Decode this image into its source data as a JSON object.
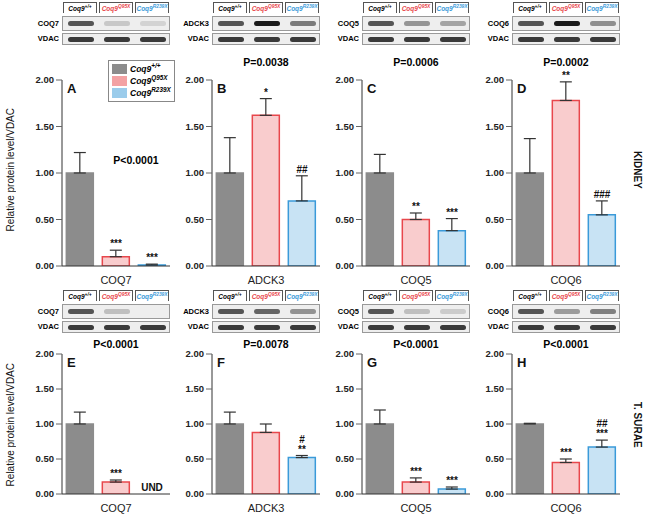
{
  "chart_data": [
    {
      "type": "bar",
      "title": "A",
      "subtitle": "P<0.0001",
      "ylabel": "Relative protein level/VDAC",
      "categories": [
        "COQ7"
      ],
      "blot_labels": [
        "COQ7",
        "VDAC"
      ],
      "legend": "upper right",
      "ylim": [
        0,
        2
      ],
      "yticks": [
        {
          "value": 0,
          "label": "0.00"
        },
        {
          "value": 0.5,
          "label": "0.50"
        },
        {
          "value": 1,
          "label": "1.00"
        },
        {
          "value": 1.5,
          "label": "1.50"
        },
        {
          "value": 2,
          "label": "2.00"
        }
      ],
      "series": [
        {
          "name": "Coq9+/+",
          "color": "#8c8c8c",
          "values": [
            1.0
          ],
          "errors": [
            0.22
          ],
          "annotations": [
            []
          ]
        },
        {
          "name": "Coq9Q95X",
          "color": "#e8474c",
          "values": [
            0.1
          ],
          "errors": [
            0.07
          ],
          "annotations": [
            [
              "***"
            ]
          ]
        },
        {
          "name": "Coq9R239X",
          "color": "#3a9ad9",
          "values": [
            0.01
          ],
          "errors": [
            0.01
          ],
          "annotations": [
            [
              "***"
            ]
          ]
        }
      ]
    },
    {
      "type": "bar",
      "title": "B",
      "subtitle": "P=0.0038",
      "categories": [
        "ADCK3"
      ],
      "blot_labels": [
        "ADCK3",
        "VDAC"
      ],
      "ylim": [
        0,
        2
      ],
      "yticks": [
        {
          "value": 0,
          "label": "0.00"
        },
        {
          "value": 0.5,
          "label": "0.50"
        },
        {
          "value": 1,
          "label": "1.00"
        },
        {
          "value": 1.5,
          "label": "1.50"
        },
        {
          "value": 2,
          "label": "2.00"
        }
      ],
      "series": [
        {
          "name": "Coq9+/+",
          "color": "#8c8c8c",
          "values": [
            1.0
          ],
          "errors": [
            0.38
          ],
          "annotations": [
            []
          ]
        },
        {
          "name": "Coq9Q95X",
          "color": "#e8474c",
          "values": [
            1.62
          ],
          "errors": [
            0.18
          ],
          "annotations": [
            [
              "*"
            ]
          ]
        },
        {
          "name": "Coq9R239X",
          "color": "#3a9ad9",
          "values": [
            0.7
          ],
          "errors": [
            0.27
          ],
          "annotations": [
            [
              "##"
            ]
          ]
        }
      ]
    },
    {
      "type": "bar",
      "title": "C",
      "subtitle": "P=0.0006",
      "categories": [
        "COQ5"
      ],
      "blot_labels": [
        "COQ5",
        "VDAC"
      ],
      "ylim": [
        0,
        2
      ],
      "yticks": [
        {
          "value": 0,
          "label": "0.00"
        },
        {
          "value": 0.5,
          "label": "0.50"
        },
        {
          "value": 1,
          "label": "1.00"
        },
        {
          "value": 1.5,
          "label": "1.50"
        },
        {
          "value": 2,
          "label": "2.00"
        }
      ],
      "series": [
        {
          "name": "Coq9+/+",
          "color": "#8c8c8c",
          "values": [
            1.0
          ],
          "errors": [
            0.2
          ],
          "annotations": [
            []
          ]
        },
        {
          "name": "Coq9Q95X",
          "color": "#e8474c",
          "values": [
            0.5
          ],
          "errors": [
            0.07
          ],
          "annotations": [
            [
              "**"
            ]
          ]
        },
        {
          "name": "Coq9R239X",
          "color": "#3a9ad9",
          "values": [
            0.38
          ],
          "errors": [
            0.13
          ],
          "annotations": [
            [
              "***"
            ]
          ]
        }
      ]
    },
    {
      "type": "bar",
      "title": "D",
      "subtitle": "P=0.0002",
      "annotation": "KIDNEY",
      "categories": [
        "COQ6"
      ],
      "blot_labels": [
        "COQ6",
        "VDAC"
      ],
      "ylim": [
        0,
        2
      ],
      "yticks": [
        {
          "value": 0,
          "label": "0.00"
        },
        {
          "value": 0.5,
          "label": "0.50"
        },
        {
          "value": 1,
          "label": "1.00"
        },
        {
          "value": 1.5,
          "label": "1.50"
        },
        {
          "value": 2,
          "label": "2.00"
        }
      ],
      "series": [
        {
          "name": "Coq9+/+",
          "color": "#8c8c8c",
          "values": [
            1.0
          ],
          "errors": [
            0.37
          ],
          "annotations": [
            []
          ]
        },
        {
          "name": "Coq9Q95X",
          "color": "#e8474c",
          "values": [
            1.78
          ],
          "errors": [
            0.2
          ],
          "annotations": [
            [
              "**"
            ]
          ]
        },
        {
          "name": "Coq9R239X",
          "color": "#3a9ad9",
          "values": [
            0.55
          ],
          "errors": [
            0.15
          ],
          "annotations": [
            [
              "###"
            ]
          ]
        }
      ]
    },
    {
      "type": "bar",
      "title": "E",
      "subtitle": "P<0.0001",
      "ylabel": "Relative protein level/VDAC",
      "categories": [
        "COQ7"
      ],
      "blot_labels": [
        "COQ7",
        "VDAC"
      ],
      "ylim": [
        0,
        2
      ],
      "yticks": [
        {
          "value": 0,
          "label": "0.00"
        },
        {
          "value": 0.5,
          "label": "0.50"
        },
        {
          "value": 1,
          "label": "1.00"
        },
        {
          "value": 1.5,
          "label": "1.50"
        },
        {
          "value": 2,
          "label": "2.00"
        }
      ],
      "series": [
        {
          "name": "Coq9+/+",
          "color": "#8c8c8c",
          "values": [
            1.0
          ],
          "errors": [
            0.17
          ],
          "annotations": [
            []
          ]
        },
        {
          "name": "Coq9Q95X",
          "color": "#e8474c",
          "values": [
            0.17
          ],
          "errors": [
            0.03
          ],
          "annotations": [
            [
              "***"
            ]
          ]
        },
        {
          "name": "Coq9R239X",
          "color": "#3a9ad9",
          "values": [
            null
          ],
          "errors": [
            null
          ],
          "annotations": [
            [
              "UND"
            ]
          ]
        }
      ]
    },
    {
      "type": "bar",
      "title": "F",
      "subtitle": "P=0.0078",
      "categories": [
        "ADCK3"
      ],
      "blot_labels": [
        "ADCK3",
        "VDAC"
      ],
      "ylim": [
        0,
        2
      ],
      "yticks": [
        {
          "value": 0,
          "label": "0.00"
        },
        {
          "value": 0.5,
          "label": "0.50"
        },
        {
          "value": 1,
          "label": "1.00"
        },
        {
          "value": 1.5,
          "label": "1.50"
        },
        {
          "value": 2,
          "label": "2.00"
        }
      ],
      "series": [
        {
          "name": "Coq9+/+",
          "color": "#8c8c8c",
          "values": [
            1.0
          ],
          "errors": [
            0.17
          ],
          "annotations": [
            []
          ]
        },
        {
          "name": "Coq9Q95X",
          "color": "#e8474c",
          "values": [
            0.88
          ],
          "errors": [
            0.12
          ],
          "annotations": [
            []
          ]
        },
        {
          "name": "Coq9R239X",
          "color": "#3a9ad9",
          "values": [
            0.52
          ],
          "errors": [
            0.03
          ],
          "annotations": [
            [
              "#",
              "**"
            ]
          ]
        }
      ]
    },
    {
      "type": "bar",
      "title": "G",
      "subtitle": "P<0.0001",
      "categories": [
        "COQ5"
      ],
      "blot_labels": [
        "COQ5",
        "VDAC"
      ],
      "ylim": [
        0,
        2
      ],
      "yticks": [
        {
          "value": 0,
          "label": "0.00"
        },
        {
          "value": 0.5,
          "label": "0.50"
        },
        {
          "value": 1,
          "label": "1.00"
        },
        {
          "value": 1.5,
          "label": "1.50"
        },
        {
          "value": 2,
          "label": "2.00"
        }
      ],
      "series": [
        {
          "name": "Coq9+/+",
          "color": "#8c8c8c",
          "values": [
            1.0
          ],
          "errors": [
            0.2
          ],
          "annotations": [
            []
          ]
        },
        {
          "name": "Coq9Q95X",
          "color": "#e8474c",
          "values": [
            0.17
          ],
          "errors": [
            0.06
          ],
          "annotations": [
            [
              "***"
            ]
          ]
        },
        {
          "name": "Coq9R239X",
          "color": "#3a9ad9",
          "values": [
            0.07
          ],
          "errors": [
            0.03
          ],
          "annotations": [
            [
              "***"
            ]
          ]
        }
      ]
    },
    {
      "type": "bar",
      "title": "H",
      "subtitle": "P<0.0001",
      "annotation": "T. SURAE",
      "categories": [
        "COQ6"
      ],
      "blot_labels": [
        "COQ6",
        "VDAC"
      ],
      "ylim": [
        0,
        2
      ],
      "yticks": [
        {
          "value": 0,
          "label": "0.00"
        },
        {
          "value": 0.5,
          "label": "0.50"
        },
        {
          "value": 1,
          "label": "1.00"
        },
        {
          "value": 1.5,
          "label": "1.50"
        },
        {
          "value": 2,
          "label": "2.00"
        }
      ],
      "series": [
        {
          "name": "Coq9+/+",
          "color": "#8c8c8c",
          "values": [
            1.0
          ],
          "errors": [
            0.01
          ],
          "annotations": [
            []
          ]
        },
        {
          "name": "Coq9Q95X",
          "color": "#e8474c",
          "values": [
            0.45
          ],
          "errors": [
            0.05
          ],
          "annotations": [
            [
              "***"
            ]
          ]
        },
        {
          "name": "Coq9R239X",
          "color": "#3a9ad9",
          "values": [
            0.67
          ],
          "errors": [
            0.1
          ],
          "annotations": [
            [
              "##",
              "***"
            ]
          ]
        }
      ]
    }
  ]
}
